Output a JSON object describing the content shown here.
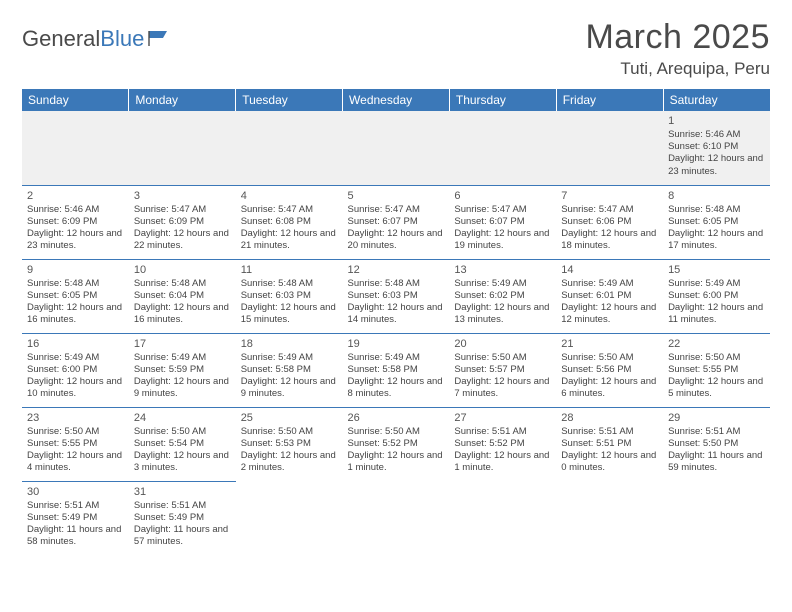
{
  "logo": {
    "part1": "General",
    "part2": "Blue"
  },
  "title": {
    "month": "March 2025",
    "location": "Tuti, Arequipa, Peru"
  },
  "colors": {
    "header_bg": "#3b78b8",
    "header_text": "#ffffff",
    "border": "#3b78b8",
    "empty_bg": "#f0f0f0",
    "text": "#444444",
    "logo_dark": "#4a4a4a",
    "logo_blue": "#3b78b8"
  },
  "dayHeaders": [
    "Sunday",
    "Monday",
    "Tuesday",
    "Wednesday",
    "Thursday",
    "Friday",
    "Saturday"
  ],
  "weeks": [
    [
      null,
      null,
      null,
      null,
      null,
      null,
      {
        "n": "1",
        "sr": "5:46 AM",
        "ss": "6:10 PM",
        "dl": "12 hours and 23 minutes."
      }
    ],
    [
      {
        "n": "2",
        "sr": "5:46 AM",
        "ss": "6:09 PM",
        "dl": "12 hours and 23 minutes."
      },
      {
        "n": "3",
        "sr": "5:47 AM",
        "ss": "6:09 PM",
        "dl": "12 hours and 22 minutes."
      },
      {
        "n": "4",
        "sr": "5:47 AM",
        "ss": "6:08 PM",
        "dl": "12 hours and 21 minutes."
      },
      {
        "n": "5",
        "sr": "5:47 AM",
        "ss": "6:07 PM",
        "dl": "12 hours and 20 minutes."
      },
      {
        "n": "6",
        "sr": "5:47 AM",
        "ss": "6:07 PM",
        "dl": "12 hours and 19 minutes."
      },
      {
        "n": "7",
        "sr": "5:47 AM",
        "ss": "6:06 PM",
        "dl": "12 hours and 18 minutes."
      },
      {
        "n": "8",
        "sr": "5:48 AM",
        "ss": "6:05 PM",
        "dl": "12 hours and 17 minutes."
      }
    ],
    [
      {
        "n": "9",
        "sr": "5:48 AM",
        "ss": "6:05 PM",
        "dl": "12 hours and 16 minutes."
      },
      {
        "n": "10",
        "sr": "5:48 AM",
        "ss": "6:04 PM",
        "dl": "12 hours and 16 minutes."
      },
      {
        "n": "11",
        "sr": "5:48 AM",
        "ss": "6:03 PM",
        "dl": "12 hours and 15 minutes."
      },
      {
        "n": "12",
        "sr": "5:48 AM",
        "ss": "6:03 PM",
        "dl": "12 hours and 14 minutes."
      },
      {
        "n": "13",
        "sr": "5:49 AM",
        "ss": "6:02 PM",
        "dl": "12 hours and 13 minutes."
      },
      {
        "n": "14",
        "sr": "5:49 AM",
        "ss": "6:01 PM",
        "dl": "12 hours and 12 minutes."
      },
      {
        "n": "15",
        "sr": "5:49 AM",
        "ss": "6:00 PM",
        "dl": "12 hours and 11 minutes."
      }
    ],
    [
      {
        "n": "16",
        "sr": "5:49 AM",
        "ss": "6:00 PM",
        "dl": "12 hours and 10 minutes."
      },
      {
        "n": "17",
        "sr": "5:49 AM",
        "ss": "5:59 PM",
        "dl": "12 hours and 9 minutes."
      },
      {
        "n": "18",
        "sr": "5:49 AM",
        "ss": "5:58 PM",
        "dl": "12 hours and 9 minutes."
      },
      {
        "n": "19",
        "sr": "5:49 AM",
        "ss": "5:58 PM",
        "dl": "12 hours and 8 minutes."
      },
      {
        "n": "20",
        "sr": "5:50 AM",
        "ss": "5:57 PM",
        "dl": "12 hours and 7 minutes."
      },
      {
        "n": "21",
        "sr": "5:50 AM",
        "ss": "5:56 PM",
        "dl": "12 hours and 6 minutes."
      },
      {
        "n": "22",
        "sr": "5:50 AM",
        "ss": "5:55 PM",
        "dl": "12 hours and 5 minutes."
      }
    ],
    [
      {
        "n": "23",
        "sr": "5:50 AM",
        "ss": "5:55 PM",
        "dl": "12 hours and 4 minutes."
      },
      {
        "n": "24",
        "sr": "5:50 AM",
        "ss": "5:54 PM",
        "dl": "12 hours and 3 minutes."
      },
      {
        "n": "25",
        "sr": "5:50 AM",
        "ss": "5:53 PM",
        "dl": "12 hours and 2 minutes."
      },
      {
        "n": "26",
        "sr": "5:50 AM",
        "ss": "5:52 PM",
        "dl": "12 hours and 1 minute."
      },
      {
        "n": "27",
        "sr": "5:51 AM",
        "ss": "5:52 PM",
        "dl": "12 hours and 1 minute."
      },
      {
        "n": "28",
        "sr": "5:51 AM",
        "ss": "5:51 PM",
        "dl": "12 hours and 0 minutes."
      },
      {
        "n": "29",
        "sr": "5:51 AM",
        "ss": "5:50 PM",
        "dl": "11 hours and 59 minutes."
      }
    ],
    [
      {
        "n": "30",
        "sr": "5:51 AM",
        "ss": "5:49 PM",
        "dl": "11 hours and 58 minutes."
      },
      {
        "n": "31",
        "sr": "5:51 AM",
        "ss": "5:49 PM",
        "dl": "11 hours and 57 minutes."
      },
      null,
      null,
      null,
      null,
      null
    ]
  ],
  "labels": {
    "sunrise": "Sunrise:",
    "sunset": "Sunset:",
    "daylight": "Daylight:"
  }
}
